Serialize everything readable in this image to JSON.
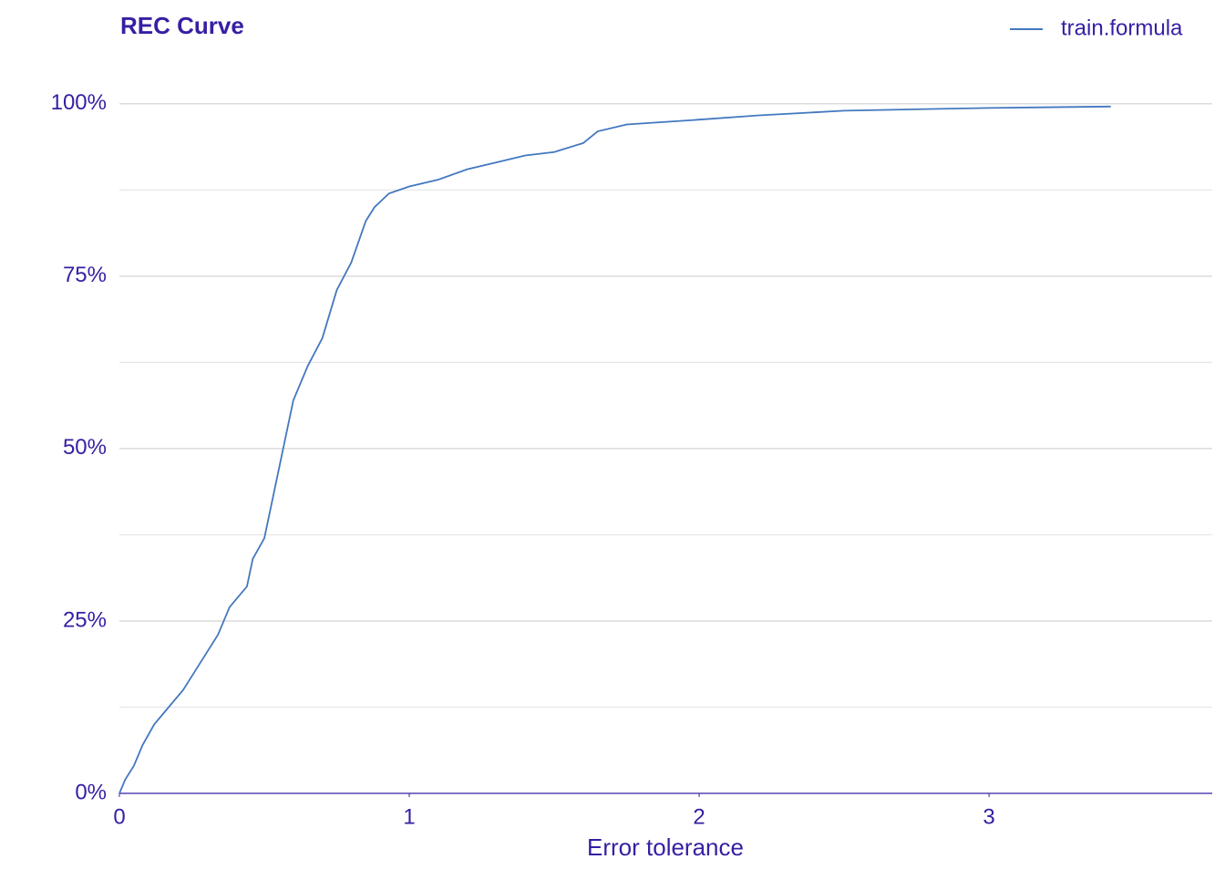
{
  "chart_data": {
    "type": "line",
    "title": "REC Curve",
    "x_label": "Error tolerance",
    "x": [
      0,
      0.02,
      0.05,
      0.08,
      0.12,
      0.16,
      0.22,
      0.28,
      0.34,
      0.38,
      0.44,
      0.46,
      0.5,
      0.54,
      0.57,
      0.6,
      0.65,
      0.7,
      0.75,
      0.8,
      0.85,
      0.88,
      0.93,
      1.0,
      1.1,
      1.2,
      1.3,
      1.4,
      1.5,
      1.6,
      1.65,
      1.75,
      2.0,
      2.2,
      2.5,
      3.0,
      3.42
    ],
    "series": [
      {
        "name": "train.formula",
        "color": "#4378bf",
        "values": [
          0,
          2,
          4,
          7,
          10,
          12,
          15,
          19,
          23,
          27,
          30,
          34,
          37,
          45,
          51,
          57,
          62,
          66,
          73,
          77,
          83,
          85,
          87,
          88,
          89,
          90.5,
          91.5,
          92.5,
          93,
          94.3,
          96,
          97,
          97.7,
          98.3,
          99,
          99.4,
          99.6
        ]
      }
    ],
    "xlim": [
      0,
      3.77
    ],
    "ylim": [
      0,
      105
    ],
    "xticks": [
      0,
      1,
      2,
      3
    ],
    "yticks": [
      {
        "value": 0,
        "label": "0%"
      },
      {
        "value": 25,
        "label": "25%"
      },
      {
        "value": 50,
        "label": "50%"
      },
      {
        "value": 75,
        "label": "75%"
      },
      {
        "value": 100,
        "label": "100%"
      }
    ],
    "grid": true,
    "legend_position": "top-right"
  }
}
